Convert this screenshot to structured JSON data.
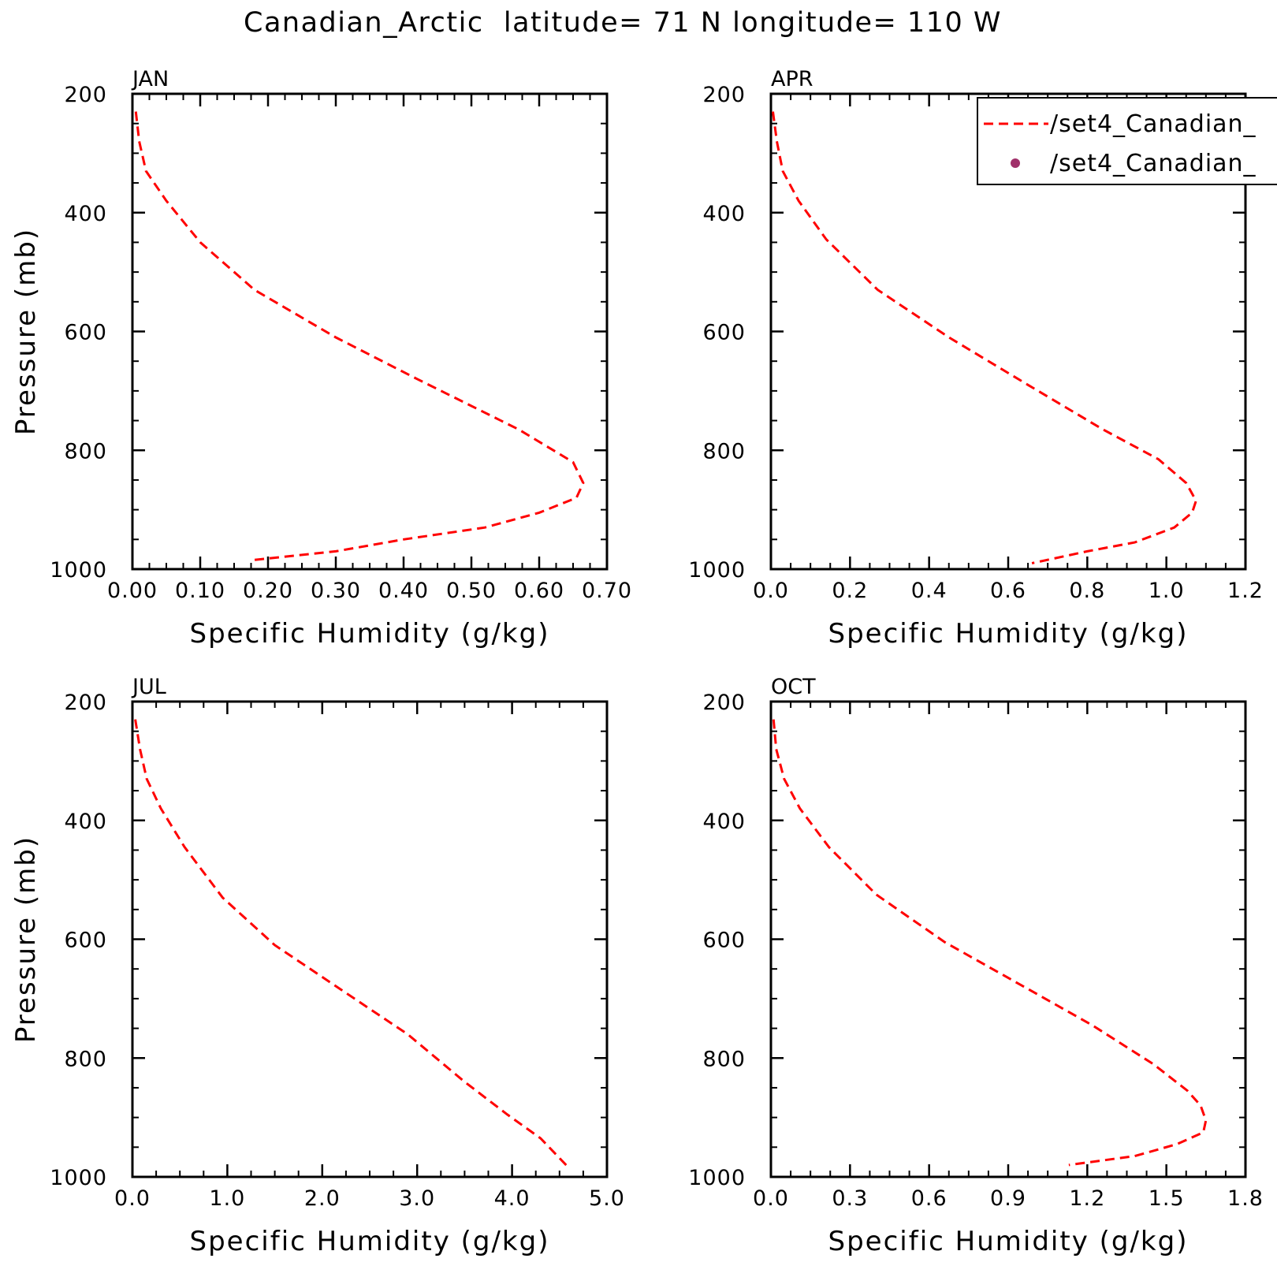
{
  "figure": {
    "title": "Canadian_Arctic  latitude= 71 N longitude= 110 W"
  },
  "legend": {
    "entries": [
      {
        "label": "/set4_Canadian_",
        "style": "dashed-line",
        "color": "#ff0000"
      },
      {
        "label": "/set4_Canadian_",
        "style": "dot",
        "color": "#a0306a"
      }
    ],
    "placement": "top-right of APR panel"
  },
  "chart_data": [
    {
      "type": "line",
      "panel": "JAN",
      "xlabel": "Specific Humidity (g/kg)",
      "ylabel": "Pressure (mb)",
      "xlim": [
        0,
        0.7
      ],
      "ylim": [
        1000,
        200
      ],
      "y_inverted": true,
      "xticks": [
        "0.00",
        "0.10",
        "0.20",
        "0.30",
        "0.40",
        "0.50",
        "0.60",
        "0.70"
      ],
      "yticks": [
        "200",
        "400",
        "600",
        "800",
        "1000"
      ],
      "grid": false,
      "series": [
        {
          "color": "#ff0000",
          "style": "dashed",
          "x": [
            0.005,
            0.01,
            0.02,
            0.05,
            0.1,
            0.18,
            0.3,
            0.42,
            0.57,
            0.65,
            0.665,
            0.655,
            0.6,
            0.52,
            0.4,
            0.3,
            0.175
          ],
          "y": [
            230,
            280,
            330,
            380,
            450,
            530,
            610,
            680,
            765,
            820,
            855,
            880,
            905,
            930,
            950,
            970,
            985
          ]
        }
      ]
    },
    {
      "type": "line",
      "panel": "APR",
      "xlabel": "Specific Humidity (g/kg)",
      "ylabel": "",
      "xlim": [
        0,
        1.2
      ],
      "ylim": [
        1000,
        200
      ],
      "y_inverted": true,
      "xticks": [
        "0.0",
        "0.2",
        "0.4",
        "0.6",
        "0.8",
        "1.0",
        "1.2"
      ],
      "yticks": [
        "200",
        "400",
        "600",
        "800",
        "1000"
      ],
      "grid": false,
      "series": [
        {
          "color": "#ff0000",
          "style": "dashed",
          "x": [
            0.005,
            0.015,
            0.03,
            0.07,
            0.14,
            0.27,
            0.45,
            0.65,
            0.84,
            0.98,
            1.05,
            1.075,
            1.065,
            1.02,
            0.92,
            0.8,
            0.66
          ],
          "y": [
            230,
            280,
            330,
            380,
            445,
            530,
            610,
            690,
            765,
            815,
            855,
            885,
            905,
            930,
            955,
            970,
            990
          ]
        }
      ]
    },
    {
      "type": "line",
      "panel": "JUL",
      "xlabel": "Specific Humidity (g/kg)",
      "ylabel": "Pressure (mb)",
      "xlim": [
        0,
        5.0
      ],
      "ylim": [
        1000,
        200
      ],
      "y_inverted": true,
      "xticks": [
        "0.0",
        "1.0",
        "2.0",
        "3.0",
        "4.0",
        "5.0"
      ],
      "yticks": [
        "200",
        "400",
        "600",
        "800",
        "1000"
      ],
      "grid": false,
      "series": [
        {
          "color": "#ff0000",
          "style": "dashed",
          "x": [
            0.03,
            0.08,
            0.15,
            0.3,
            0.55,
            0.95,
            1.5,
            2.2,
            2.9,
            3.5,
            3.95,
            4.3,
            4.6
          ],
          "y": [
            230,
            280,
            330,
            380,
            445,
            530,
            610,
            685,
            760,
            840,
            895,
            935,
            985
          ]
        }
      ]
    },
    {
      "type": "line",
      "panel": "OCT",
      "xlabel": "Specific Humidity (g/kg)",
      "ylabel": "",
      "xlim": [
        0,
        1.8
      ],
      "ylim": [
        1000,
        200
      ],
      "y_inverted": true,
      "xticks": [
        "0.0",
        "0.3",
        "0.6",
        "0.9",
        "1.2",
        "1.5",
        "1.8"
      ],
      "yticks": [
        "200",
        "400",
        "600",
        "800",
        "1000"
      ],
      "grid": false,
      "series": [
        {
          "color": "#ff0000",
          "style": "dashed",
          "x": [
            0.01,
            0.02,
            0.05,
            0.11,
            0.22,
            0.4,
            0.66,
            0.96,
            1.22,
            1.45,
            1.58,
            1.63,
            1.65,
            1.64,
            1.54,
            1.38,
            1.13
          ],
          "y": [
            230,
            280,
            330,
            380,
            445,
            525,
            605,
            680,
            745,
            810,
            855,
            880,
            905,
            925,
            945,
            965,
            980
          ]
        }
      ]
    }
  ]
}
